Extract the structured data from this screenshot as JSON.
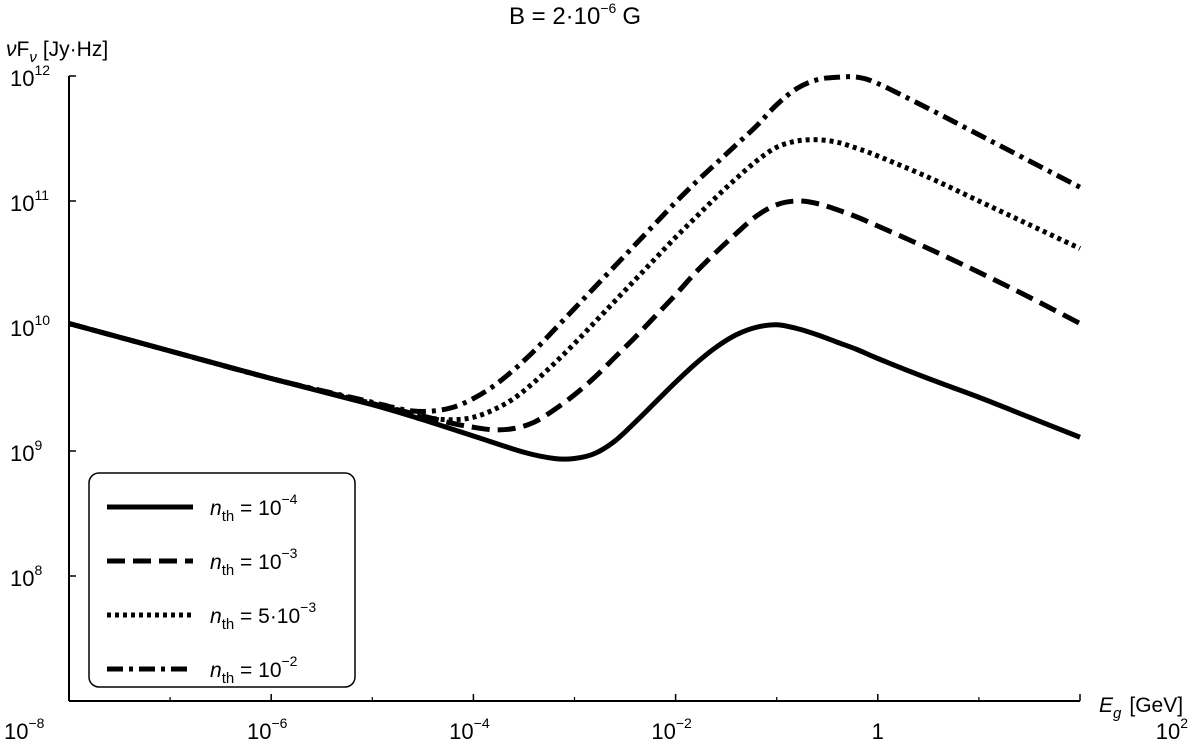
{
  "chart_data": {
    "type": "line",
    "title": "B = 2·10",
    "title_exp": "−6",
    "title_unit": "G",
    "xlabel_symbol": "E",
    "xlabel_sub": "g",
    "xlabel_unit": "[GeV]",
    "ylabel_symbol": "ν",
    "ylabel_f": "F",
    "ylabel_sub": "ν",
    "ylabel_unit": "[Jy·Hz]",
    "x_scale": "log",
    "y_scale": "log",
    "xlim_log10": [
      -8,
      2
    ],
    "ylim_log10": [
      7,
      12
    ],
    "x_ticks": [
      {
        "log": -8,
        "base": "10",
        "exp": "−8"
      },
      {
        "log": -6,
        "base": "10",
        "exp": "−6"
      },
      {
        "log": -4,
        "base": "10",
        "exp": "−4"
      },
      {
        "log": -2,
        "base": "10",
        "exp": "−2"
      },
      {
        "log": 0,
        "base": "1",
        "exp": ""
      },
      {
        "log": 2,
        "base": "10",
        "exp": "2"
      }
    ],
    "y_ticks": [
      {
        "log": 8,
        "base": "10",
        "exp": "8"
      },
      {
        "log": 9,
        "base": "10",
        "exp": "9"
      },
      {
        "log": 10,
        "base": "10",
        "exp": "10"
      },
      {
        "log": 11,
        "base": "10",
        "exp": "11"
      },
      {
        "log": 12,
        "base": "10",
        "exp": "12"
      }
    ],
    "legend_position": "bottom-left",
    "series": [
      {
        "name": "n_th = 10^-4",
        "label_var": "n",
        "label_sub": "th",
        "label_eq": " = 10",
        "label_exp": "−4",
        "label_tail": "",
        "dash": "solid",
        "log_x": [
          -8,
          -7,
          -6,
          -5,
          -4.5,
          -4,
          -3.5,
          -3.2,
          -3,
          -2.8,
          -2.6,
          -2.4,
          -2.2,
          -2,
          -1.8,
          -1.6,
          -1.4,
          -1.2,
          -1,
          -0.8,
          -0.6,
          -0.4,
          -0.2,
          0,
          0.5,
          1,
          1.5,
          2
        ],
        "log_y": [
          10.02,
          9.8,
          9.58,
          9.37,
          9.25,
          9.12,
          8.99,
          8.94,
          8.94,
          8.98,
          9.08,
          9.23,
          9.39,
          9.55,
          9.7,
          9.83,
          9.93,
          9.99,
          10.01,
          9.98,
          9.93,
          9.87,
          9.81,
          9.74,
          9.58,
          9.43,
          9.27,
          9.11
        ]
      },
      {
        "name": "n_th = 10^-3",
        "label_var": "n",
        "label_sub": "th",
        "label_eq": " = 10",
        "label_exp": "−3",
        "label_tail": "",
        "dash": "dashed",
        "log_x": [
          -8,
          -7,
          -6,
          -5,
          -4.5,
          -4.2,
          -4,
          -3.8,
          -3.6,
          -3.4,
          -3.2,
          -3,
          -2.8,
          -2.6,
          -2.4,
          -2.2,
          -2,
          -1.8,
          -1.6,
          -1.4,
          -1.2,
          -1,
          -0.8,
          -0.6,
          -0.4,
          -0.2,
          0,
          0.5,
          1,
          1.5,
          2
        ],
        "log_y": [
          10.02,
          9.8,
          9.58,
          9.38,
          9.28,
          9.22,
          9.19,
          9.17,
          9.18,
          9.23,
          9.33,
          9.45,
          9.59,
          9.75,
          9.91,
          10.08,
          10.25,
          10.43,
          10.59,
          10.74,
          10.88,
          10.97,
          11.0,
          10.98,
          10.93,
          10.87,
          10.8,
          10.62,
          10.43,
          10.23,
          10.02
        ]
      },
      {
        "name": "n_th = 5·10^-3",
        "label_var": "n",
        "label_sub": "th",
        "label_eq": " = 5·10",
        "label_exp": "−3",
        "label_tail": "",
        "dash": "dotted",
        "log_x": [
          -8,
          -7,
          -6,
          -5,
          -4.6,
          -4.4,
          -4.2,
          -4,
          -3.8,
          -3.6,
          -3.4,
          -3.2,
          -3,
          -2.8,
          -2.6,
          -2.4,
          -2.2,
          -2,
          -1.8,
          -1.6,
          -1.4,
          -1.2,
          -1,
          -0.8,
          -0.6,
          -0.4,
          -0.2,
          0,
          0.5,
          1,
          1.5,
          2
        ],
        "log_y": [
          10.02,
          9.8,
          9.58,
          9.38,
          9.29,
          9.26,
          9.25,
          9.27,
          9.33,
          9.42,
          9.55,
          9.7,
          9.86,
          10.03,
          10.2,
          10.37,
          10.54,
          10.71,
          10.87,
          11.03,
          11.18,
          11.32,
          11.43,
          11.48,
          11.49,
          11.47,
          11.42,
          11.36,
          11.19,
          11.0,
          10.81,
          10.62
        ]
      },
      {
        "name": "n_th = 10^-2",
        "label_var": "n",
        "label_sub": "th",
        "label_eq": " = 10",
        "label_exp": "−2",
        "label_tail": "",
        "dash": "dashdot",
        "log_x": [
          -8,
          -7,
          -6,
          -5,
          -4.8,
          -4.6,
          -4.4,
          -4.2,
          -4,
          -3.8,
          -3.6,
          -3.4,
          -3.2,
          -3,
          -2.8,
          -2.6,
          -2.4,
          -2.2,
          -2,
          -1.8,
          -1.6,
          -1.4,
          -1.2,
          -1,
          -0.8,
          -0.6,
          -0.4,
          -0.2,
          0,
          0.5,
          1,
          1.5,
          2
        ],
        "log_y": [
          10.02,
          9.8,
          9.58,
          9.39,
          9.35,
          9.32,
          9.32,
          9.35,
          9.42,
          9.52,
          9.65,
          9.8,
          9.97,
          10.14,
          10.31,
          10.48,
          10.65,
          10.82,
          10.99,
          11.15,
          11.3,
          11.45,
          11.6,
          11.77,
          11.9,
          11.97,
          11.99,
          11.99,
          11.94,
          11.74,
          11.53,
          11.32,
          11.11
        ]
      }
    ]
  }
}
